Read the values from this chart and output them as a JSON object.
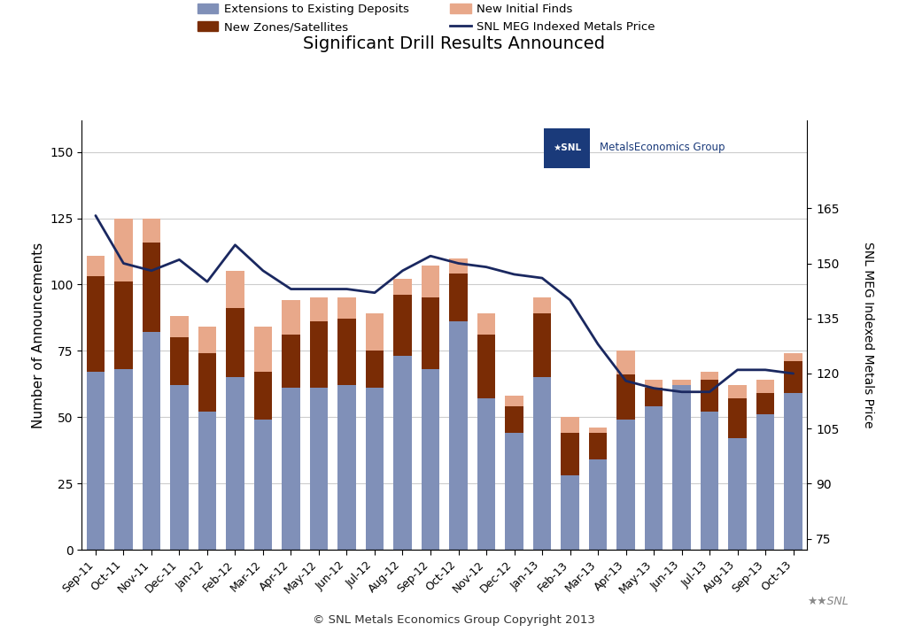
{
  "title": "Significant Drill Results Announced",
  "categories": [
    "Sep-11",
    "Oct-11",
    "Nov-11",
    "Dec-11",
    "Jan-12",
    "Feb-12",
    "Mar-12",
    "Apr-12",
    "May-12",
    "Jun-12",
    "Jul-12",
    "Aug-12",
    "Sep-12",
    "Oct-12",
    "Nov-12",
    "Dec-12",
    "Jan-13",
    "Feb-13",
    "Mar-13",
    "Apr-13",
    "May-13",
    "Jun-13",
    "Jul-13",
    "Aug-13",
    "Sep-13",
    "Oct-13"
  ],
  "extensions": [
    67,
    68,
    82,
    62,
    52,
    65,
    49,
    61,
    61,
    62,
    61,
    73,
    68,
    86,
    57,
    44,
    65,
    28,
    34,
    49,
    54,
    62,
    52,
    42,
    51,
    59
  ],
  "new_zones": [
    36,
    33,
    34,
    18,
    22,
    26,
    18,
    20,
    25,
    25,
    14,
    23,
    27,
    18,
    24,
    10,
    24,
    16,
    10,
    17,
    7,
    0,
    12,
    15,
    8,
    12
  ],
  "new_finds": [
    8,
    24,
    9,
    8,
    10,
    14,
    17,
    13,
    9,
    8,
    14,
    6,
    12,
    6,
    8,
    4,
    6,
    6,
    2,
    9,
    3,
    2,
    3,
    5,
    5,
    3
  ],
  "metals_price": [
    163,
    150,
    148,
    151,
    145,
    155,
    148,
    143,
    143,
    143,
    142,
    148,
    152,
    150,
    149,
    147,
    146,
    140,
    128,
    118,
    116,
    115,
    115,
    121,
    121,
    120
  ],
  "bar_color_extensions": "#8090b8",
  "bar_color_zones": "#7a2c05",
  "bar_color_finds": "#e8a88a",
  "line_color": "#1a2860",
  "ylabel_left": "Number of Announcements",
  "ylabel_right": "SNL MEG Indexed Metals Price",
  "yticks_left": [
    0,
    25,
    50,
    75,
    100,
    125,
    150
  ],
  "yticks_right": [
    75,
    90,
    105,
    120,
    135,
    150,
    165
  ],
  "ylim_left": [
    0,
    162
  ],
  "ylim_right": [
    72,
    189
  ],
  "copyright": "© SNL Metals Economics Group Copyright 2013",
  "background_color": "#ffffff",
  "grid_color": "#cccccc",
  "legend_labels": [
    "Extensions to Existing Deposits",
    "New Zones/Satellites",
    "New Initial Finds",
    "SNL MEG Indexed Metals Price"
  ]
}
